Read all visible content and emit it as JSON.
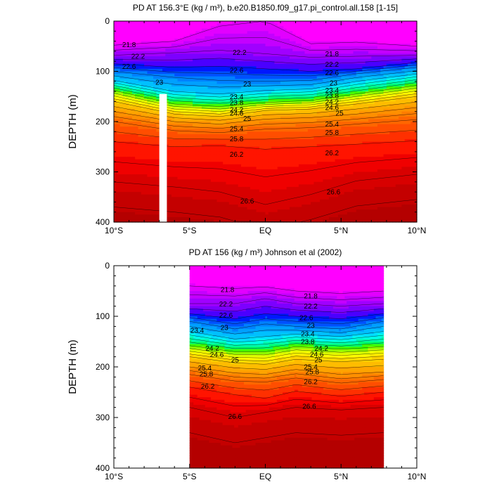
{
  "chart_data": [
    {
      "type": "contour",
      "title": "PD AT 156.3°E (kg / m³), b.e20.B1850.f09_g17.pi_control.all.158 [1-15]",
      "ylabel": "DEPTH (m)",
      "xlabel": "",
      "xlim": [
        -10,
        10
      ],
      "ylim": [
        400,
        0
      ],
      "x_ticks": [
        "10°S",
        "5°S",
        "EQ",
        "5°N",
        "10°N"
      ],
      "y_ticks": [
        "0",
        "100",
        "200",
        "300",
        "400"
      ],
      "data_lon_range": [
        -10,
        10
      ],
      "missing_band": [
        -7.0,
        -6.5
      ],
      "contour_interval": 0.2,
      "colormap": [
        "#ff00ff",
        "#e200ff",
        "#c400ff",
        "#a000ff",
        "#7c00ff",
        "#4a00ff",
        "#0018ff",
        "#0050ff",
        "#0080ff",
        "#00a0ff",
        "#00c0ff",
        "#00e0ff",
        "#00ffe6",
        "#00ffb0",
        "#00ff70",
        "#40ff00",
        "#90ff00",
        "#d8ff00",
        "#ffff00",
        "#ffe400",
        "#ffd000",
        "#ffbc00",
        "#ffa400",
        "#ff9000",
        "#ff7c00",
        "#ff6600",
        "#ff4e00",
        "#ff3000",
        "#ff1400",
        "#f00000",
        "#d80000",
        "#c40000",
        "#b40000"
      ],
      "isopycnal_depths": [
        {
          "sigma": 21.8,
          "depth_by_lat": [
            [
              -10,
              48
            ],
            [
              -6,
              40
            ],
            [
              -3,
              10
            ],
            [
              0,
              0
            ],
            [
              3,
              45
            ],
            [
              6,
              42
            ],
            [
              10,
              50
            ]
          ]
        },
        {
          "sigma": 22.2,
          "depth_by_lat": [
            [
              -10,
              68
            ],
            [
              -6,
              63
            ],
            [
              -3,
              58
            ],
            [
              0,
              65
            ],
            [
              3,
              72
            ],
            [
              6,
              70
            ],
            [
              10,
              68
            ]
          ]
        },
        {
          "sigma": 22.6,
          "depth_by_lat": [
            [
              -10,
              85
            ],
            [
              -6,
              92
            ],
            [
              -3,
              90
            ],
            [
              0,
              95
            ],
            [
              3,
              100
            ],
            [
              6,
              95
            ],
            [
              10,
              82
            ]
          ]
        },
        {
          "sigma": 23.0,
          "depth_by_lat": [
            [
              -10,
              100
            ],
            [
              -6,
              112
            ],
            [
              -3,
              118
            ],
            [
              0,
              120
            ],
            [
              3,
              118
            ],
            [
              6,
              105
            ],
            [
              10,
              92
            ]
          ]
        },
        {
          "sigma": 23.4,
          "depth_by_lat": [
            [
              -10,
              118
            ],
            [
              -6,
              140
            ],
            [
              -3,
              145
            ],
            [
              0,
              138
            ],
            [
              3,
              135
            ],
            [
              6,
              120
            ],
            [
              10,
              105
            ]
          ]
        },
        {
          "sigma": 24.2,
          "depth_by_lat": [
            [
              -10,
              138
            ],
            [
              -6,
              165
            ],
            [
              -3,
              170
            ],
            [
              0,
              162
            ],
            [
              3,
              158
            ],
            [
              6,
              145
            ],
            [
              10,
              128
            ]
          ]
        },
        {
          "sigma": 25.0,
          "depth_by_lat": [
            [
              -10,
              160
            ],
            [
              -6,
              185
            ],
            [
              -3,
              190
            ],
            [
              0,
              178
            ],
            [
              3,
              175
            ],
            [
              6,
              165
            ],
            [
              10,
              150
            ]
          ]
        },
        {
          "sigma": 25.4,
          "depth_by_lat": [
            [
              -10,
              180
            ],
            [
              -6,
              200
            ],
            [
              -3,
              205
            ],
            [
              0,
              195
            ],
            [
              3,
              192
            ],
            [
              6,
              185
            ],
            [
              10,
              172
            ]
          ]
        },
        {
          "sigma": 25.8,
          "depth_by_lat": [
            [
              -10,
              200
            ],
            [
              -6,
              218
            ],
            [
              -3,
              222
            ],
            [
              0,
              215
            ],
            [
              3,
              212
            ],
            [
              6,
              205
            ],
            [
              10,
              196
            ]
          ]
        },
        {
          "sigma": 26.2,
          "depth_by_lat": [
            [
              -10,
              240
            ],
            [
              -6,
              250
            ],
            [
              -3,
              248
            ],
            [
              0,
              255
            ],
            [
              3,
              250
            ],
            [
              6,
              245
            ],
            [
              10,
              238
            ]
          ]
        },
        {
          "sigma": 26.6,
          "depth_by_lat": [
            [
              -10,
              320
            ],
            [
              -6,
              330
            ],
            [
              -3,
              340
            ],
            [
              0,
              365
            ],
            [
              3,
              345
            ],
            [
              6,
              318
            ],
            [
              10,
              305
            ]
          ]
        }
      ],
      "contour_labels": [
        {
          "text": "21.8",
          "lat": -9.0,
          "depth": 47
        },
        {
          "text": "22.2",
          "lat": -8.4,
          "depth": 70
        },
        {
          "text": "22.6",
          "lat": -9.0,
          "depth": 90
        },
        {
          "text": "23",
          "lat": -7.0,
          "depth": 122
        },
        {
          "text": "22.2",
          "lat": -1.7,
          "depth": 62
        },
        {
          "text": "22.6",
          "lat": -1.9,
          "depth": 98
        },
        {
          "text": "23",
          "lat": -1.2,
          "depth": 125
        },
        {
          "text": "23.4",
          "lat": -1.9,
          "depth": 150
        },
        {
          "text": "23.8",
          "lat": -1.9,
          "depth": 162
        },
        {
          "text": "24.2",
          "lat": -1.9,
          "depth": 176
        },
        {
          "text": "24.6",
          "lat": -1.9,
          "depth": 183
        },
        {
          "text": "25",
          "lat": -1.2,
          "depth": 194
        },
        {
          "text": "25.4",
          "lat": -1.9,
          "depth": 214
        },
        {
          "text": "25.8",
          "lat": -1.9,
          "depth": 234
        },
        {
          "text": "26.2",
          "lat": -1.9,
          "depth": 265
        },
        {
          "text": "26.6",
          "lat": -1.2,
          "depth": 358
        },
        {
          "text": "21.8",
          "lat": 4.4,
          "depth": 65
        },
        {
          "text": "22.2",
          "lat": 4.4,
          "depth": 86
        },
        {
          "text": "22.6",
          "lat": 4.4,
          "depth": 103
        },
        {
          "text": "23",
          "lat": 4.5,
          "depth": 123
        },
        {
          "text": "23.4",
          "lat": 4.4,
          "depth": 138
        },
        {
          "text": "23.8",
          "lat": 4.4,
          "depth": 148
        },
        {
          "text": "24.2",
          "lat": 4.4,
          "depth": 161
        },
        {
          "text": "24.6",
          "lat": 4.4,
          "depth": 172
        },
        {
          "text": "25",
          "lat": 4.9,
          "depth": 183
        },
        {
          "text": "25.4",
          "lat": 4.4,
          "depth": 205
        },
        {
          "text": "25.8",
          "lat": 4.4,
          "depth": 222
        },
        {
          "text": "26.2",
          "lat": 4.4,
          "depth": 262
        },
        {
          "text": "26.6",
          "lat": 4.5,
          "depth": 340
        }
      ]
    },
    {
      "type": "contour",
      "title": "PD AT 156 (kg / m³) Johnson et al (2002)",
      "ylabel": "DEPTH (m)",
      "xlabel": "",
      "xlim": [
        -10,
        10
      ],
      "ylim": [
        400,
        0
      ],
      "x_ticks": [
        "10°S",
        "5°S",
        "EQ",
        "5°N",
        "10°N"
      ],
      "y_ticks": [
        "0",
        "100",
        "200",
        "300",
        "400"
      ],
      "data_lon_range": [
        -5,
        7.8
      ],
      "contour_interval": 0.2,
      "isopycnal_depths": [
        {
          "sigma": 21.8,
          "depth_by_lat": [
            [
              -5,
              40
            ],
            [
              -2,
              45
            ],
            [
              0,
              42
            ],
            [
              2,
              50
            ],
            [
              5,
              55
            ],
            [
              7.8,
              50
            ]
          ]
        },
        {
          "sigma": 22.2,
          "depth_by_lat": [
            [
              -5,
              75
            ],
            [
              -2,
              75
            ],
            [
              0,
              65
            ],
            [
              2,
              75
            ],
            [
              5,
              80
            ],
            [
              7.8,
              75
            ]
          ]
        },
        {
          "sigma": 22.6,
          "depth_by_lat": [
            [
              -5,
              95
            ],
            [
              -2,
              105
            ],
            [
              0,
              95
            ],
            [
              2,
              100
            ],
            [
              5,
              105
            ],
            [
              7.8,
              95
            ]
          ]
        },
        {
          "sigma": 23.0,
          "depth_by_lat": [
            [
              -5,
              110
            ],
            [
              -2,
              125
            ],
            [
              0,
              115
            ],
            [
              2,
              120
            ],
            [
              5,
              125
            ],
            [
              7.8,
              110
            ]
          ]
        },
        {
          "sigma": 23.4,
          "depth_by_lat": [
            [
              -5,
              130
            ],
            [
              -2,
              145
            ],
            [
              0,
              140
            ],
            [
              2,
              135
            ],
            [
              5,
              140
            ],
            [
              7.8,
              130
            ]
          ]
        },
        {
          "sigma": 24.2,
          "depth_by_lat": [
            [
              -5,
              158
            ],
            [
              -2,
              170
            ],
            [
              0,
              170
            ],
            [
              2,
              160
            ],
            [
              5,
              165
            ],
            [
              7.8,
              160
            ]
          ]
        },
        {
          "sigma": 25.0,
          "depth_by_lat": [
            [
              -5,
              180
            ],
            [
              -2,
              192
            ],
            [
              0,
              195
            ],
            [
              2,
              185
            ],
            [
              5,
              190
            ],
            [
              7.8,
              185
            ]
          ]
        },
        {
          "sigma": 25.4,
          "depth_by_lat": [
            [
              -5,
              200
            ],
            [
              -2,
              212
            ],
            [
              0,
              215
            ],
            [
              2,
              205
            ],
            [
              5,
              215
            ],
            [
              7.8,
              210
            ]
          ]
        },
        {
          "sigma": 25.8,
          "depth_by_lat": [
            [
              -5,
              215
            ],
            [
              -2,
              228
            ],
            [
              0,
              230
            ],
            [
              2,
              222
            ],
            [
              5,
              232
            ],
            [
              7.8,
              225
            ]
          ]
        },
        {
          "sigma": 26.2,
          "depth_by_lat": [
            [
              -5,
              240
            ],
            [
              -2,
              255
            ],
            [
              0,
              262
            ],
            [
              2,
              248
            ],
            [
              5,
              258
            ],
            [
              7.8,
              250
            ]
          ]
        },
        {
          "sigma": 26.6,
          "depth_by_lat": [
            [
              -5,
              280
            ],
            [
              -2,
              300
            ],
            [
              0,
              290
            ],
            [
              2,
              280
            ],
            [
              5,
              285
            ],
            [
              7.8,
              280
            ]
          ]
        }
      ],
      "contour_labels": [
        {
          "text": "21.8",
          "lat": -2.5,
          "depth": 47
        },
        {
          "text": "22.2",
          "lat": -2.6,
          "depth": 76
        },
        {
          "text": "22.6",
          "lat": -2.6,
          "depth": 98
        },
        {
          "text": "23",
          "lat": -2.7,
          "depth": 122
        },
        {
          "text": "23.4",
          "lat": -4.5,
          "depth": 128
        },
        {
          "text": "24.2",
          "lat": -3.5,
          "depth": 163
        },
        {
          "text": "24.6",
          "lat": -3.2,
          "depth": 176
        },
        {
          "text": "25",
          "lat": -2.0,
          "depth": 186
        },
        {
          "text": "25.4",
          "lat": -4.0,
          "depth": 202
        },
        {
          "text": "25.8",
          "lat": -3.9,
          "depth": 214
        },
        {
          "text": "26.2",
          "lat": -3.8,
          "depth": 238
        },
        {
          "text": "26.6",
          "lat": -2.0,
          "depth": 298
        },
        {
          "text": "21.8",
          "lat": 3.0,
          "depth": 60
        },
        {
          "text": "22.2",
          "lat": 3.0,
          "depth": 80
        },
        {
          "text": "22.6",
          "lat": 2.7,
          "depth": 103
        },
        {
          "text": "23",
          "lat": 3.0,
          "depth": 118
        },
        {
          "text": "23.4",
          "lat": 2.8,
          "depth": 135
        },
        {
          "text": "23.8",
          "lat": 2.8,
          "depth": 150
        },
        {
          "text": "24.2",
          "lat": 3.7,
          "depth": 163
        },
        {
          "text": "24.6",
          "lat": 3.4,
          "depth": 175
        },
        {
          "text": "25",
          "lat": 3.5,
          "depth": 186
        },
        {
          "text": "25.4",
          "lat": 3.0,
          "depth": 200
        },
        {
          "text": "25.8",
          "lat": 3.1,
          "depth": 210
        },
        {
          "text": "26.2",
          "lat": 3.0,
          "depth": 229
        },
        {
          "text": "26.6",
          "lat": 2.9,
          "depth": 278
        }
      ]
    }
  ]
}
